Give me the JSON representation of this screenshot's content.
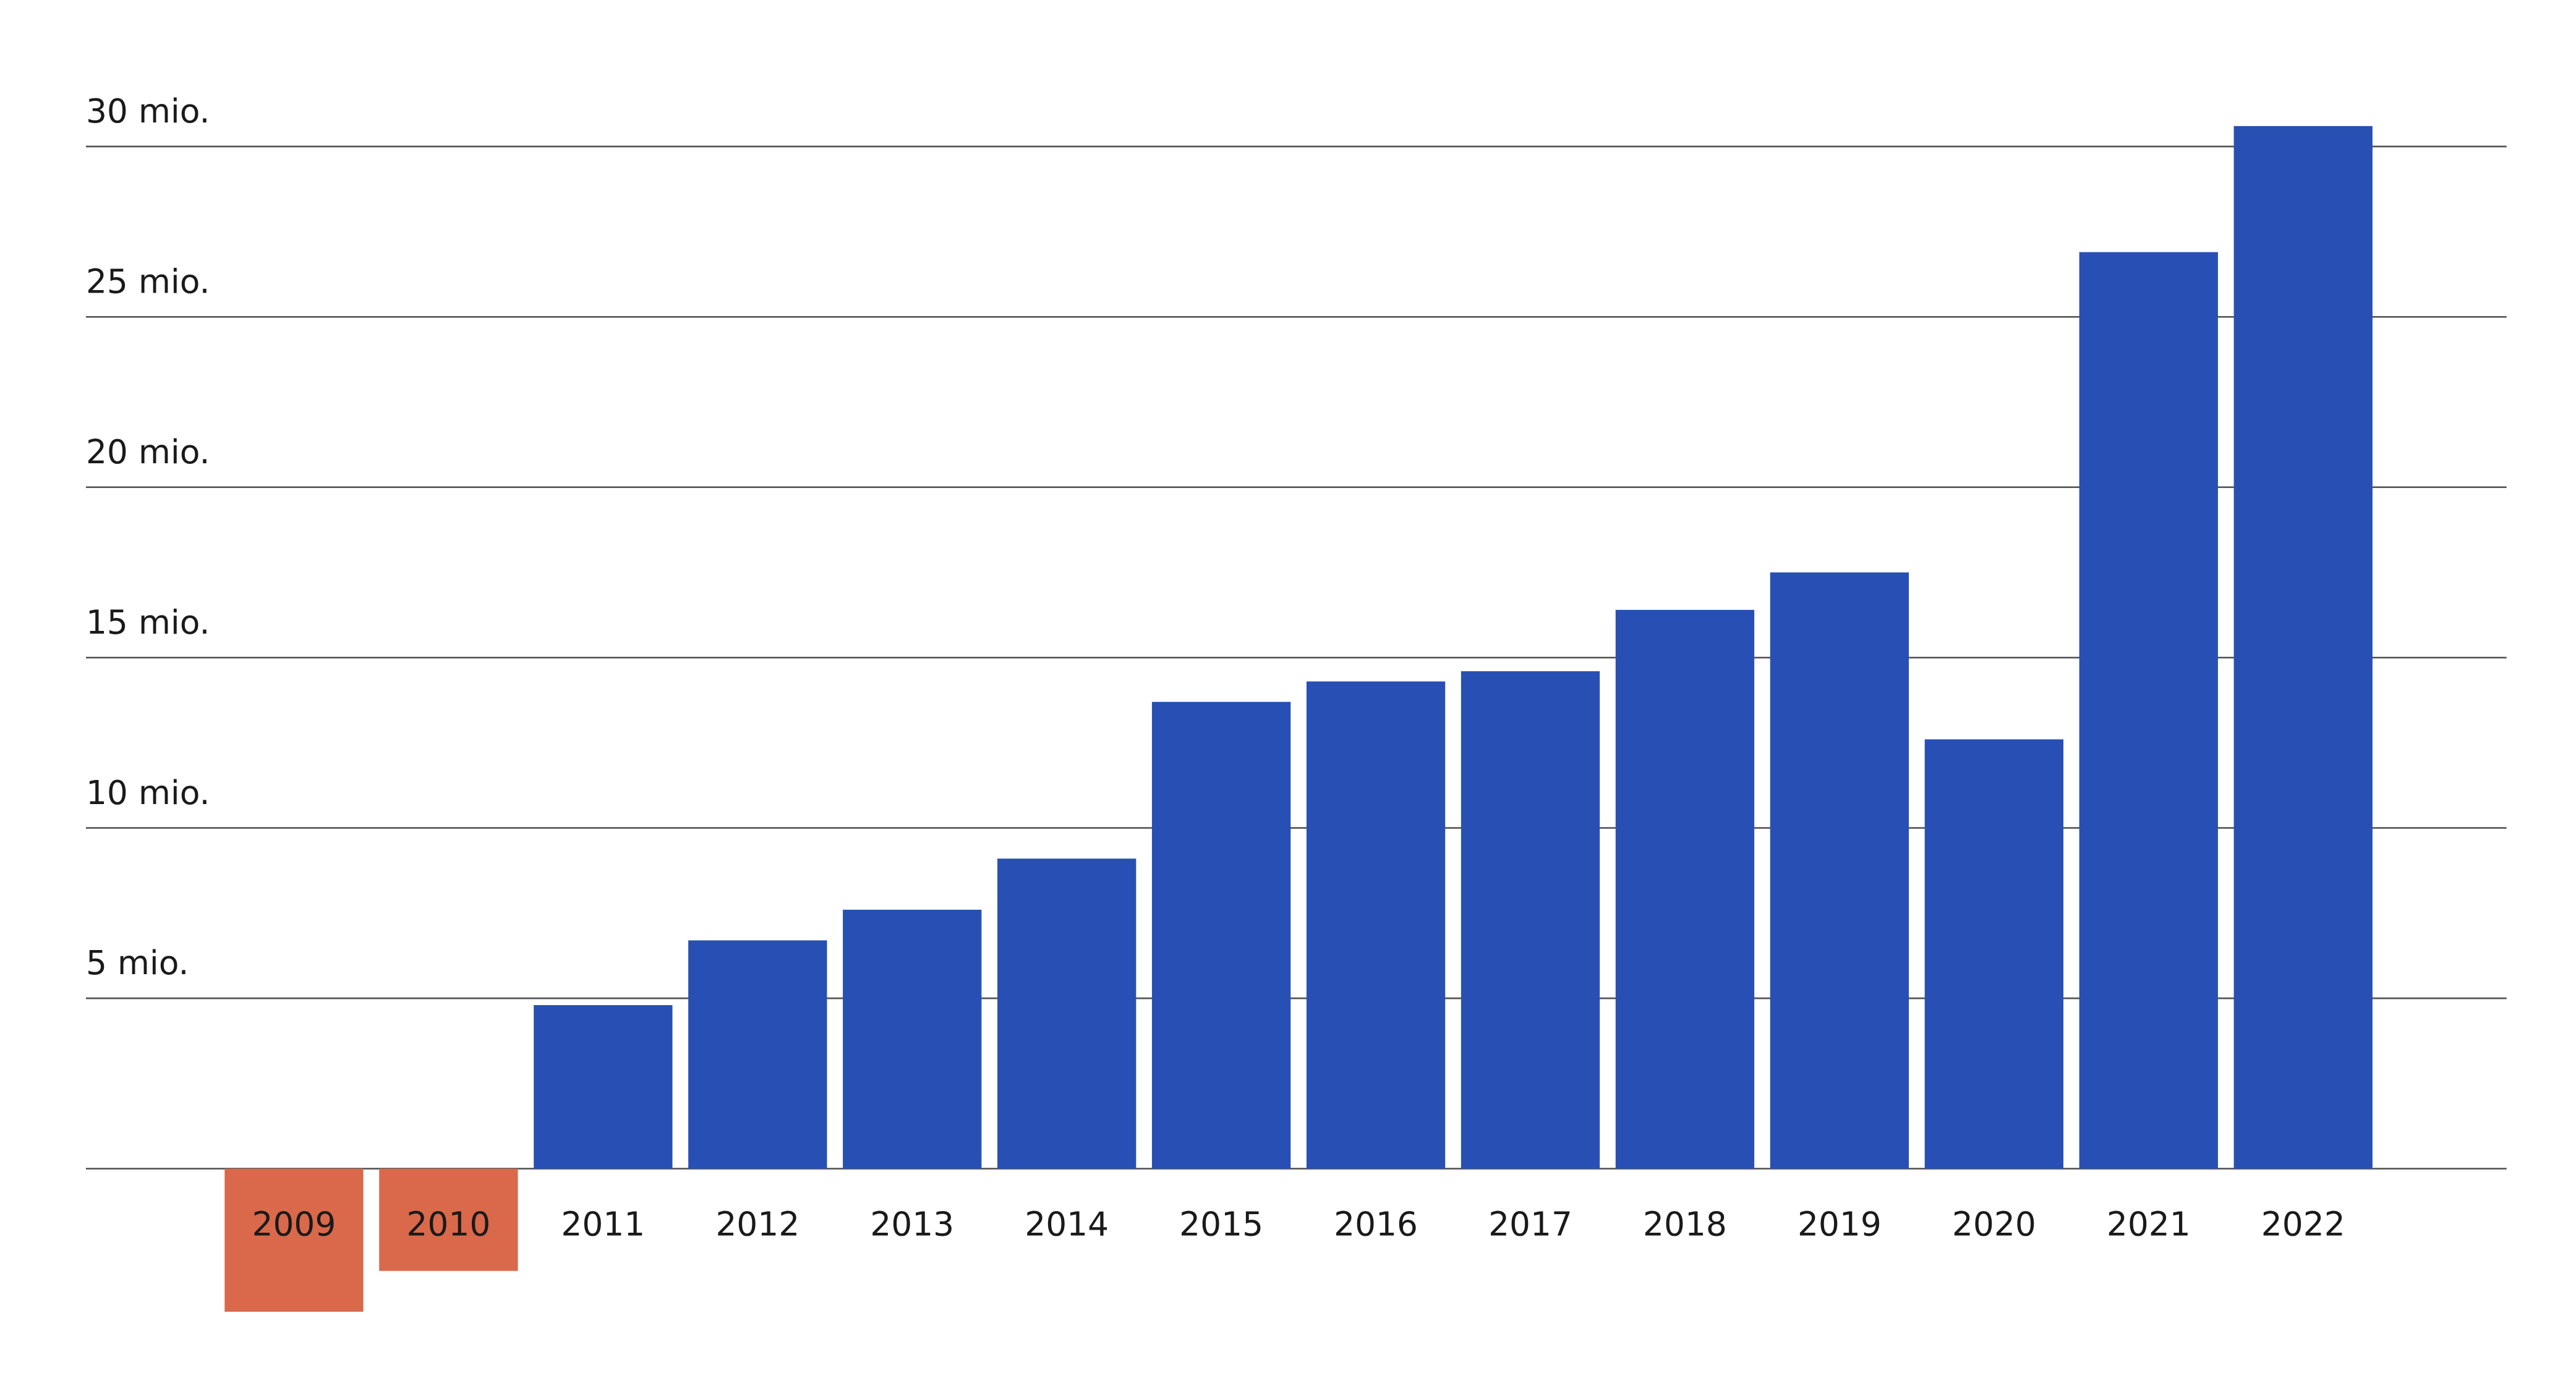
{
  "chart_data": {
    "type": "bar",
    "categories": [
      "2009",
      "2010",
      "2011",
      "2012",
      "2013",
      "2014",
      "2015",
      "2016",
      "2017",
      "2018",
      "2019",
      "2020",
      "2021",
      "2022"
    ],
    "values": [
      -4.2,
      -3.0,
      4.8,
      6.7,
      7.6,
      9.1,
      13.7,
      14.3,
      14.6,
      16.4,
      17.5,
      12.6,
      26.9,
      30.6
    ],
    "color": "#2850b4",
    "negative_color": "#d9694a",
    "ylim": [
      -6.6,
      34.3
    ],
    "yticks": [
      {
        "value": 5,
        "label": "5 mio."
      },
      {
        "value": 10,
        "label": "10 mio."
      },
      {
        "value": 15,
        "label": "15 mio."
      },
      {
        "value": 20,
        "label": "20 mio."
      },
      {
        "value": 25,
        "label": "25 mio."
      },
      {
        "value": 30,
        "label": "30 mio."
      }
    ],
    "grid": true
  }
}
